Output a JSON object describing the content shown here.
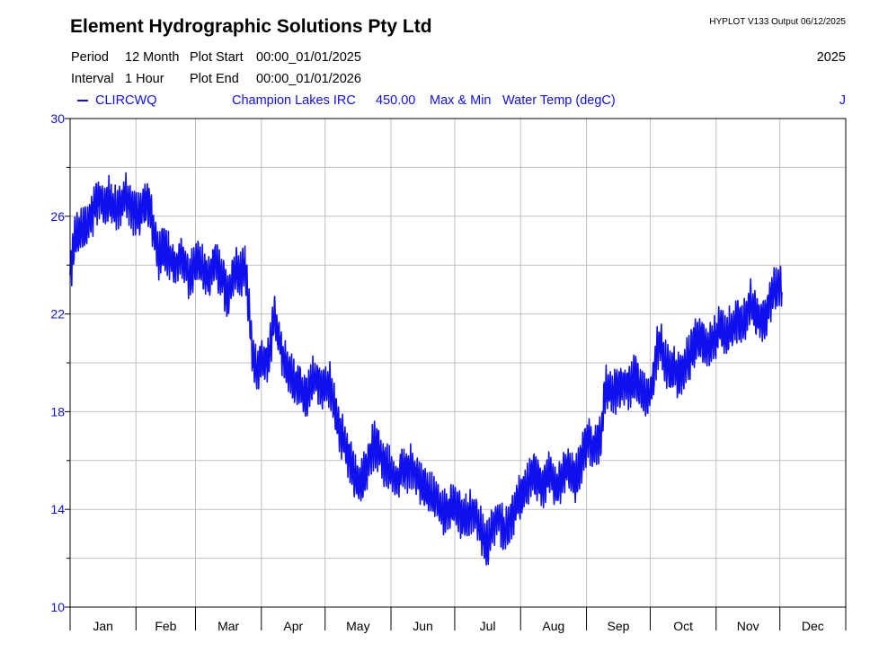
{
  "header": {
    "company": "Element Hydrographic Solutions Pty Ltd",
    "program": "HYPLOT V133  Output 06/12/2025",
    "period_label": "Period",
    "period_value": "12 Month",
    "plot_start_label": "Plot Start",
    "plot_start_value": "00:00_01/01/2025",
    "interval_label": "Interval",
    "interval_value": "1 Hour",
    "plot_end_label": "Plot End",
    "plot_end_value": "00:00_01/01/2026",
    "year": "2025"
  },
  "legend": {
    "site_code": "CLIRCWQ",
    "site_name": "Champion Lakes IRC",
    "variable_code": "450.00",
    "statistic": "Max & Min",
    "variable_name": "Water Temp (degC)",
    "end_marker": "J"
  },
  "colors": {
    "series": "#1010ee",
    "grid": "#c0c0c0",
    "axis": "#000000",
    "tick_label": "#1010ee"
  },
  "chart_data": {
    "type": "line",
    "title": "",
    "xlabel": "",
    "ylabel": "Water Temp (degC)",
    "ylim": [
      10,
      30
    ],
    "yticks": [
      10,
      14,
      18,
      22,
      26,
      30
    ],
    "y_minor_step": 2,
    "xlim_days": [
      0,
      365
    ],
    "month_starts": [
      0,
      31,
      59,
      90,
      120,
      151,
      181,
      212,
      243,
      273,
      304,
      334,
      365
    ],
    "x_tick_labels": [
      "Jan",
      "Feb",
      "Mar",
      "Apr",
      "May",
      "Jun",
      "Jul",
      "Aug",
      "Sep",
      "Oct",
      "Nov",
      "Dec"
    ],
    "series": [
      {
        "name": "CLIRCWQ Champion Lakes IRC 450.00 Max & Min Water Temp (degC)",
        "daily_range_degC": 1.4,
        "points": [
          [
            0,
            23.5
          ],
          [
            2,
            25.0
          ],
          [
            4,
            25.3
          ],
          [
            6,
            25.5
          ],
          [
            8,
            25.7
          ],
          [
            10,
            26.0
          ],
          [
            12,
            26.5
          ],
          [
            14,
            26.8
          ],
          [
            16,
            26.3
          ],
          [
            18,
            26.7
          ],
          [
            20,
            26.5
          ],
          [
            22,
            26.2
          ],
          [
            24,
            26.5
          ],
          [
            26,
            26.9
          ],
          [
            28,
            26.4
          ],
          [
            30,
            26.2
          ],
          [
            32,
            26.0
          ],
          [
            34,
            26.4
          ],
          [
            36,
            26.6
          ],
          [
            38,
            26.2
          ],
          [
            40,
            25.0
          ],
          [
            42,
            24.3
          ],
          [
            44,
            24.8
          ],
          [
            46,
            24.5
          ],
          [
            48,
            24.2
          ],
          [
            50,
            24.0
          ],
          [
            52,
            24.4
          ],
          [
            54,
            24.0
          ],
          [
            56,
            23.5
          ],
          [
            58,
            23.8
          ],
          [
            60,
            24.3
          ],
          [
            62,
            24.0
          ],
          [
            64,
            23.5
          ],
          [
            66,
            23.6
          ],
          [
            68,
            24.2
          ],
          [
            70,
            23.7
          ],
          [
            72,
            23.5
          ],
          [
            74,
            22.5
          ],
          [
            76,
            23.3
          ],
          [
            78,
            23.8
          ],
          [
            80,
            23.5
          ],
          [
            82,
            24.0
          ],
          [
            84,
            22.5
          ],
          [
            86,
            20.0
          ],
          [
            88,
            19.7
          ],
          [
            90,
            20.2
          ],
          [
            92,
            20.0
          ],
          [
            94,
            20.5
          ],
          [
            96,
            22.0
          ],
          [
            98,
            21.3
          ],
          [
            100,
            20.3
          ],
          [
            102,
            19.8
          ],
          [
            104,
            19.5
          ],
          [
            106,
            19.0
          ],
          [
            108,
            19.2
          ],
          [
            110,
            18.7
          ],
          [
            112,
            18.6
          ],
          [
            114,
            19.3
          ],
          [
            116,
            19.3
          ],
          [
            118,
            19.0
          ],
          [
            120,
            19.0
          ],
          [
            122,
            19.2
          ],
          [
            124,
            18.3
          ],
          [
            126,
            17.5
          ],
          [
            128,
            17.0
          ],
          [
            130,
            16.5
          ],
          [
            132,
            16.0
          ],
          [
            134,
            15.3
          ],
          [
            136,
            15.0
          ],
          [
            138,
            15.3
          ],
          [
            140,
            15.8
          ],
          [
            142,
            16.5
          ],
          [
            144,
            16.7
          ],
          [
            146,
            16.3
          ],
          [
            148,
            15.8
          ],
          [
            150,
            15.7
          ],
          [
            152,
            15.3
          ],
          [
            154,
            15.2
          ],
          [
            156,
            15.8
          ],
          [
            158,
            15.6
          ],
          [
            160,
            15.8
          ],
          [
            162,
            15.5
          ],
          [
            164,
            15.2
          ],
          [
            166,
            15.0
          ],
          [
            168,
            14.8
          ],
          [
            170,
            14.5
          ],
          [
            172,
            14.5
          ],
          [
            174,
            14.0
          ],
          [
            176,
            13.8
          ],
          [
            178,
            14.0
          ],
          [
            180,
            14.2
          ],
          [
            182,
            14.0
          ],
          [
            184,
            13.8
          ],
          [
            186,
            13.6
          ],
          [
            188,
            13.8
          ],
          [
            190,
            14.0
          ],
          [
            192,
            13.5
          ],
          [
            194,
            13.0
          ],
          [
            196,
            12.5
          ],
          [
            198,
            13.0
          ],
          [
            200,
            13.5
          ],
          [
            202,
            13.7
          ],
          [
            204,
            13.0
          ],
          [
            206,
            13.3
          ],
          [
            208,
            13.8
          ],
          [
            210,
            14.2
          ],
          [
            212,
            14.5
          ],
          [
            214,
            14.8
          ],
          [
            216,
            15.2
          ],
          [
            218,
            15.5
          ],
          [
            220,
            15.3
          ],
          [
            222,
            15.0
          ],
          [
            224,
            15.2
          ],
          [
            226,
            15.5
          ],
          [
            228,
            14.8
          ],
          [
            230,
            15.0
          ],
          [
            232,
            15.3
          ],
          [
            234,
            15.8
          ],
          [
            236,
            15.5
          ],
          [
            238,
            15.2
          ],
          [
            240,
            15.8
          ],
          [
            242,
            16.5
          ],
          [
            244,
            17.0
          ],
          [
            246,
            16.3
          ],
          [
            248,
            16.8
          ],
          [
            250,
            17.0
          ],
          [
            251,
            18.5
          ],
          [
            252,
            19.0
          ],
          [
            254,
            18.8
          ],
          [
            256,
            18.7
          ],
          [
            258,
            19.0
          ],
          [
            260,
            19.2
          ],
          [
            262,
            19.0
          ],
          [
            264,
            19.0
          ],
          [
            266,
            19.5
          ],
          [
            268,
            19.0
          ],
          [
            270,
            18.7
          ],
          [
            272,
            18.5
          ],
          [
            274,
            19.0
          ],
          [
            276,
            20.5
          ],
          [
            278,
            20.8
          ],
          [
            280,
            20.0
          ],
          [
            282,
            19.8
          ],
          [
            284,
            19.8
          ],
          [
            286,
            19.5
          ],
          [
            288,
            19.5
          ],
          [
            290,
            20.0
          ],
          [
            292,
            20.3
          ],
          [
            294,
            20.8
          ],
          [
            296,
            21.0
          ],
          [
            298,
            20.8
          ],
          [
            300,
            20.5
          ],
          [
            302,
            20.8
          ],
          [
            304,
            21.0
          ],
          [
            306,
            21.5
          ],
          [
            308,
            21.0
          ],
          [
            310,
            21.3
          ],
          [
            312,
            21.5
          ],
          [
            314,
            21.8
          ],
          [
            316,
            21.5
          ],
          [
            318,
            21.8
          ],
          [
            320,
            22.5
          ],
          [
            322,
            22.0
          ],
          [
            324,
            21.8
          ],
          [
            326,
            21.7
          ],
          [
            328,
            21.9
          ],
          [
            330,
            22.8
          ],
          [
            332,
            23.0
          ],
          [
            334,
            23.3
          ],
          [
            335,
            23.2
          ]
        ]
      }
    ]
  }
}
